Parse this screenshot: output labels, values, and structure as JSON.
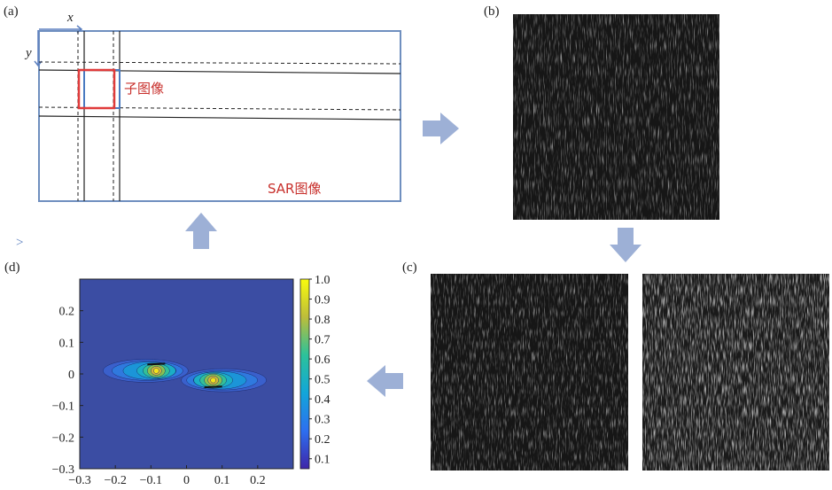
{
  "panels": {
    "a": {
      "label": "(a)",
      "x_axis": "x",
      "y_axis": "y",
      "sub_image": "子图像",
      "sar_image": "SAR图像"
    },
    "b": {
      "label": "(b)"
    },
    "c": {
      "label": "(c)"
    },
    "d": {
      "label": "(d)"
    }
  },
  "colors": {
    "frame_blue": "#6f8fbf",
    "sub_image_red": "#e03a3a",
    "label_red": "#c8302c",
    "arrow_blue": "#9db0d6",
    "spectrum_bg": "#3b4da3"
  },
  "small_arrow": ">",
  "chart_data": {
    "type": "heatmap",
    "x_ticks": [
      "−0.3",
      "−0.2",
      "−0.1",
      "0",
      "0.1",
      "0.2"
    ],
    "y_ticks": [
      "0.2",
      "0.1",
      "0",
      "−0.1",
      "−0.2",
      "−0.3"
    ],
    "xlim": [
      -0.3,
      0.3
    ],
    "ylim": [
      -0.3,
      0.3
    ],
    "colorbar_ticks": [
      "1.0",
      "0.9",
      "0.8",
      "0.7",
      "0.6",
      "0.5",
      "0.4",
      "0.3",
      "0.2",
      "0.1"
    ],
    "colorbar_range": [
      0.05,
      1.0
    ],
    "peaks": [
      {
        "x": -0.085,
        "y": 0.01,
        "value": 1.0
      },
      {
        "x": 0.075,
        "y": -0.02,
        "value": 1.0
      }
    ]
  }
}
